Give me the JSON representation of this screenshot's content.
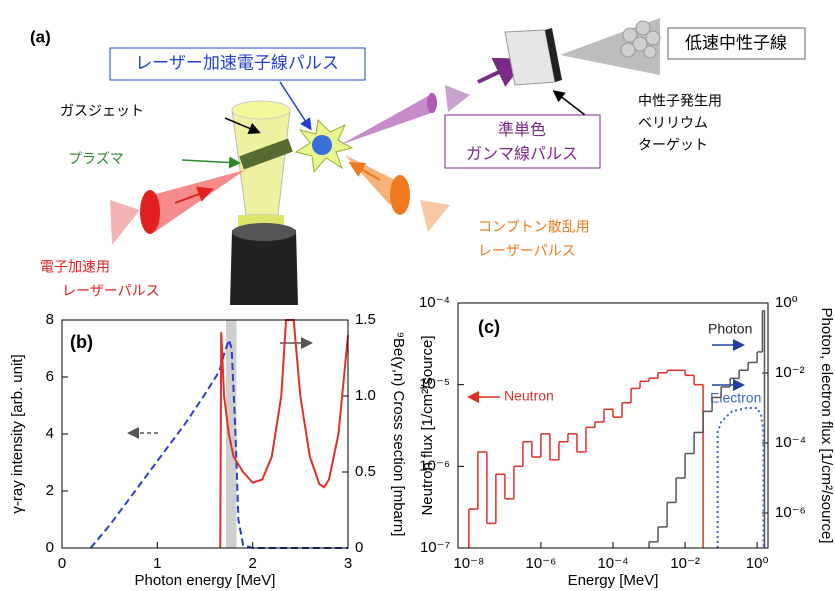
{
  "diagram": {
    "panel_label": "(a)",
    "slow_neutrons": "低速中性子線",
    "electron_pulse": "レーザー加速電子線パルス",
    "gas_jet": "ガスジェット",
    "plasma": "プラズマ",
    "gamma_pulse": [
      "準単色",
      "ガンマ線パルス"
    ],
    "target": [
      "中性子発生用",
      "ベリリウム",
      "ターゲット"
    ],
    "compton_laser": [
      "コンプトン散乱用",
      "レーザーパルス"
    ],
    "accel_laser": [
      "電子加速用",
      "レーザーパルス"
    ]
  },
  "chart_data": [
    {
      "type": "line",
      "panel_label": "(b)",
      "xlabel": "Photon energy [MeV]",
      "ylabel": "γ-ray intensity [arb. unit]",
      "y2label": "⁹Be(γ,n) Cross section [mbarn]",
      "xlim": [
        0,
        3
      ],
      "xticks": [
        0,
        1,
        2,
        3
      ],
      "ylim": [
        0,
        8
      ],
      "yticks": [
        0,
        2,
        4,
        6,
        8
      ],
      "y2lim": [
        0,
        1.5
      ],
      "y2ticks": [
        0,
        0.5,
        {
          "value": 1,
          "label": "1.0"
        },
        1.5
      ],
      "shaded_x": [
        1.72,
        1.83
      ],
      "series": [
        {
          "color": "#2b3fcc",
          "line_style": "dashed",
          "x": [
            0.3,
            0.5,
            0.7,
            0.9,
            1.1,
            1.3,
            1.5,
            1.65,
            1.7,
            1.75,
            1.78,
            1.82,
            1.85,
            1.9,
            2.0,
            3.0
          ],
          "values": [
            0,
            0.8,
            1.7,
            2.6,
            3.5,
            4.4,
            5.4,
            6.2,
            6.8,
            7.3,
            7.0,
            4,
            1,
            0.1,
            0,
            0
          ]
        },
        {
          "color": "#e0302a",
          "axis": "y2",
          "x": [
            1.66,
            1.67,
            1.7,
            1.75,
            1.8,
            1.9,
            2.0,
            2.1,
            2.2,
            2.3,
            2.35,
            2.43,
            2.5,
            2.6,
            2.7,
            2.75,
            2.8,
            2.9,
            3.0
          ],
          "values": [
            0,
            1.42,
            1.0,
            0.75,
            0.6,
            0.5,
            0.43,
            0.45,
            0.6,
            1.0,
            1.5,
            1.5,
            1.0,
            0.6,
            0.42,
            0.4,
            0.45,
            0.75,
            1.4
          ]
        }
      ]
    },
    {
      "type": "histogram",
      "panel_label": "(c)",
      "xlabel": "Energy [MeV]",
      "ylabel": "Neutron flux [1/cm²/source]",
      "y2label": "Photon, electron flux [1/cm²/source]",
      "log_x": true,
      "log_y": true,
      "xlim": [
        5e-09,
        2
      ],
      "xticks": [
        {
          "value": 1e-08,
          "label": "10⁻⁸"
        },
        {
          "value": 1e-06,
          "label": "10⁻⁶"
        },
        {
          "value": 0.0001,
          "label": "10⁻⁴"
        },
        {
          "value": 0.01,
          "label": "10⁻²"
        },
        {
          "value": 1,
          "label": "10⁰"
        }
      ],
      "ylim": [
        1e-07,
        0.0001
      ],
      "yticks": [
        {
          "value": 1e-07,
          "label": "10⁻⁷"
        },
        {
          "value": 1e-06,
          "label": "10⁻⁶"
        },
        {
          "value": 1e-05,
          "label": "10⁻⁵"
        },
        {
          "value": 0.0001,
          "label": "10⁻⁴"
        }
      ],
      "y2lim": [
        1e-07,
        1
      ],
      "y2ticks": [
        {
          "value": 1e-06,
          "label": "10⁻⁶"
        },
        {
          "value": 0.0001,
          "label": "10⁻⁴"
        },
        {
          "value": 0.01,
          "label": "10⁻²"
        },
        {
          "value": 1,
          "label": "10⁰"
        }
      ],
      "series": [
        {
          "name": "Neutron",
          "color": "#e0302a",
          "bins": [
            1e-08,
            1.778e-08,
            3.162e-08,
            5.623e-08,
            1e-07,
            1.778e-07,
            3.162e-07,
            5.623e-07,
            1e-06,
            1.778e-06,
            3.162e-06,
            5.623e-06,
            1e-05,
            1.778e-05,
            3.162e-05,
            5.623e-05,
            0.0001,
            0.0001778,
            0.0003162,
            0.0005623,
            0.001,
            0.001778,
            0.003162,
            0.005623,
            0.01,
            0.01778,
            0.03162
          ],
          "values": [
            3e-07,
            1.5e-06,
            2e-07,
            8e-07,
            4e-07,
            1e-06,
            2e-06,
            1.3e-06,
            2.5e-06,
            1.2e-06,
            2e-06,
            2.5e-06,
            1.5e-06,
            3e-06,
            3.5e-06,
            5e-06,
            4e-06,
            6e-06,
            9e-06,
            1.1e-05,
            1.2e-05,
            1.4e-05,
            1.5e-05,
            1.5e-05,
            1.3e-05,
            1e-05
          ]
        },
        {
          "name": "Photon",
          "color": "#555555",
          "axis": "y2",
          "bins": [
            0.001,
            0.001778,
            0.003162,
            0.005623,
            0.01,
            0.01778,
            0.03162,
            0.05623,
            0.1,
            0.1778,
            0.3162,
            0.5623,
            1,
            1.4,
            1.6
          ],
          "values": [
            1.5e-07,
            4e-07,
            2e-06,
            1e-05,
            5e-05,
            0.0002,
            0.0008,
            0.002,
            0.004,
            0.007,
            0.012,
            0.02,
            0.04,
            0.6
          ]
        },
        {
          "name": "Electron",
          "color": "#3a64c8",
          "axis": "y2",
          "line_style": "dotted",
          "x": [
            0.08,
            0.08,
            0.1,
            0.2,
            0.5,
            1,
            1.3,
            1.5,
            1.5
          ],
          "values": [
            1e-07,
            0.0002,
            0.0004,
            0.0008,
            0.001,
            0.001,
            0.0006,
            0.0002,
            1e-07
          ]
        }
      ]
    }
  ]
}
